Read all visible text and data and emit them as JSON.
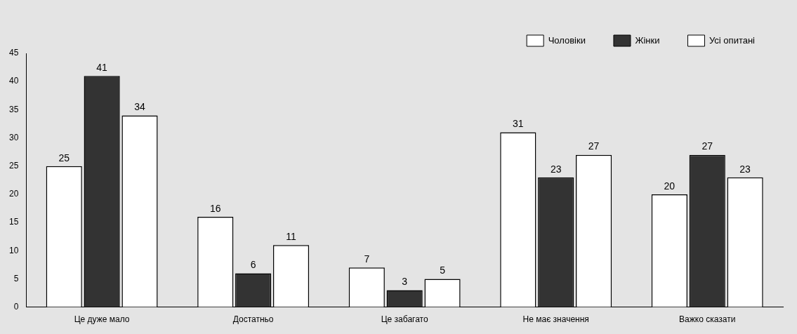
{
  "chart_data": {
    "type": "bar",
    "categories": [
      "Це дуже мало",
      "Достатньо",
      "Це забагато",
      "Не має значення",
      "Важко сказати"
    ],
    "series": [
      {
        "name": "Чоловіки",
        "color": "#ffffff",
        "values": [
          25,
          16,
          7,
          31,
          20
        ]
      },
      {
        "name": "Жінки",
        "color": "#333333",
        "values": [
          41,
          6,
          3,
          23,
          27
        ]
      },
      {
        "name": "Усі опитані",
        "color": "#ffffff",
        "values": [
          34,
          11,
          5,
          27,
          23
        ]
      }
    ],
    "ylim": [
      0,
      45
    ],
    "yticks": [
      0,
      5,
      10,
      15,
      20,
      25,
      30,
      35,
      40,
      45
    ],
    "grid": false,
    "legend": "top right",
    "data_labels": true
  }
}
